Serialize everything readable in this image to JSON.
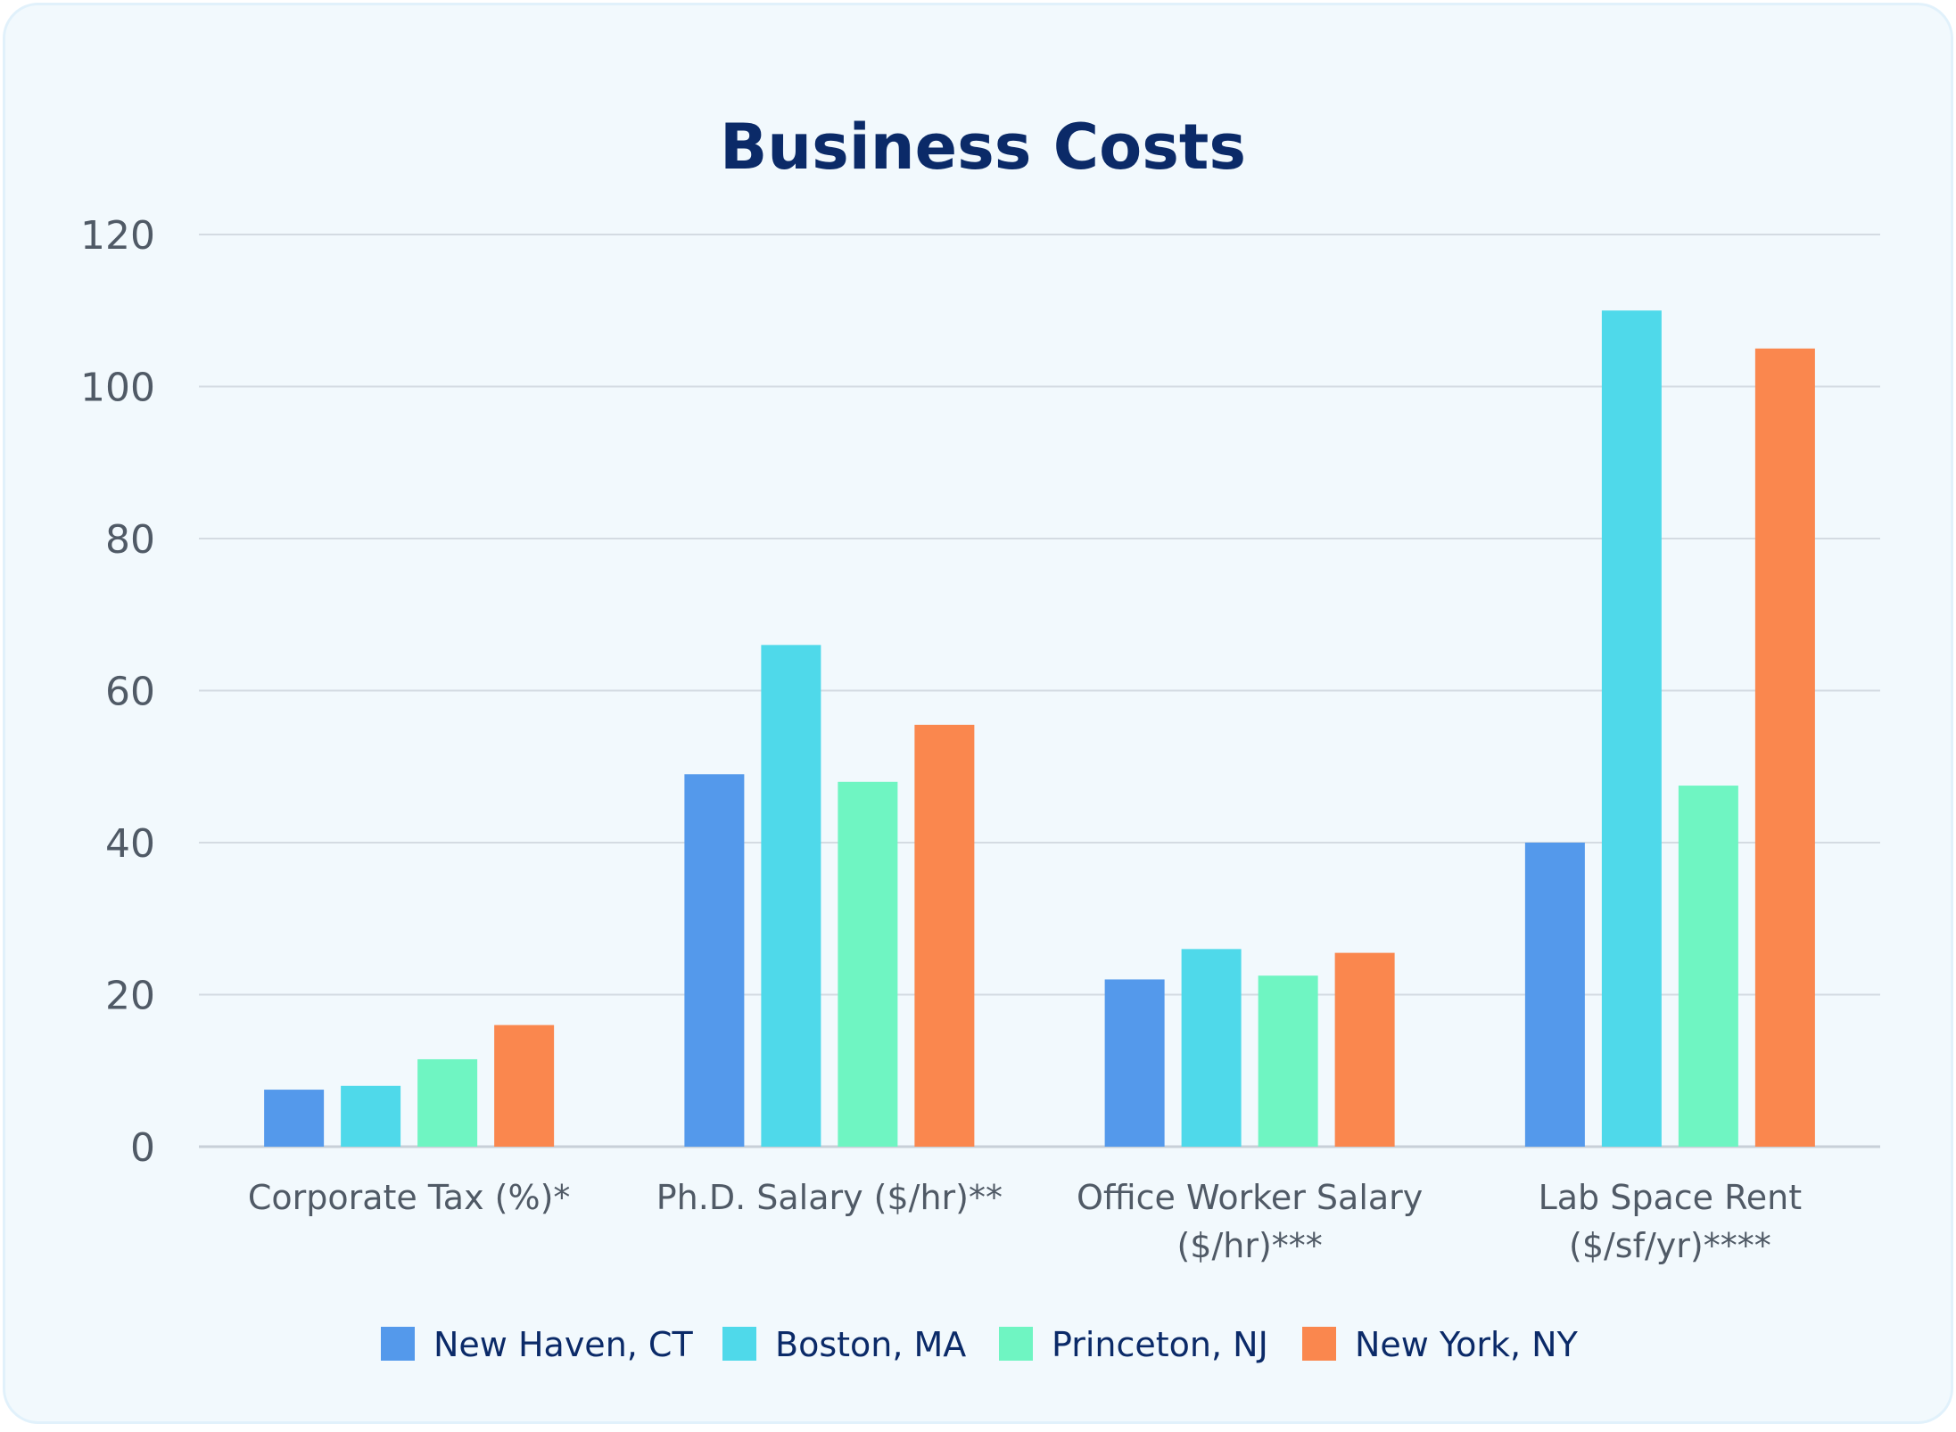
{
  "chart_data": {
    "type": "bar",
    "title": "Business Costs",
    "xlabel": "",
    "ylabel": "",
    "ylim": [
      0,
      120
    ],
    "yticks": [
      "0",
      "20",
      "40",
      "60",
      "80",
      "100",
      "120"
    ],
    "grid": true,
    "legend_position": "bottom",
    "categories": [
      [
        "Corporate Tax (%)*"
      ],
      [
        "Ph.D. Salary ($/hr)**"
      ],
      [
        "Office Worker Salary",
        "($/hr)***"
      ],
      [
        "Lab Space Rent",
        "($/sf/yr)****"
      ]
    ],
    "series": [
      {
        "name": "New Haven, CT",
        "color": "#5499eb",
        "values": [
          7.5,
          49,
          22,
          40
        ]
      },
      {
        "name": "Boston, MA",
        "color": "#4fd9ea",
        "values": [
          8,
          66,
          26,
          110
        ]
      },
      {
        "name": "Princeton, NJ",
        "color": "#6ff5c2",
        "values": [
          11.5,
          48,
          22.5,
          47.5
        ]
      },
      {
        "name": "New York, NY",
        "color": "#fa874e",
        "values": [
          16,
          55.5,
          25.5,
          105
        ]
      }
    ]
  }
}
